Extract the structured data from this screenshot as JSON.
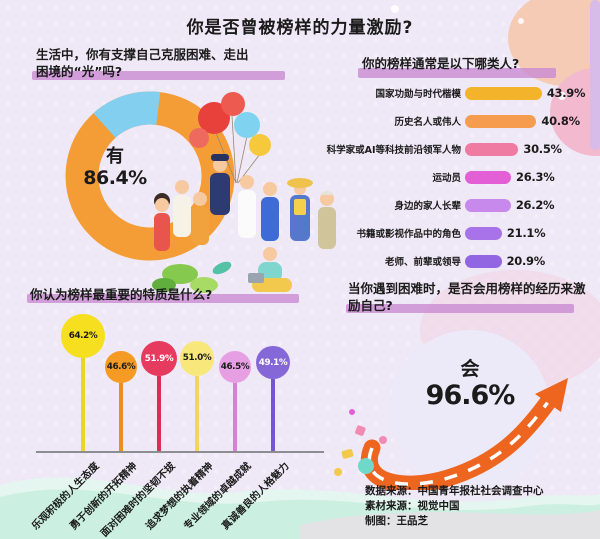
{
  "title": "你是否曾被榜样的力量激励?",
  "questions": {
    "q1": {
      "line1": "生活中，你有支撑自己克服困难、走出",
      "line2": "困境的“光”吗?"
    },
    "q2": {
      "text": "你的榜样通常是以下哪类人?"
    },
    "q3": {
      "text": "你认为榜样最重要的特质是什么?"
    },
    "q4": {
      "line1": "当你遇到困难时，是否会用榜样的经历来激",
      "line2": "励自己?"
    }
  },
  "chart_data": [
    {
      "type": "pie",
      "subtype": "donut",
      "question": "生活中，你有支撑自己克服困难、走出困境的“光”吗?",
      "segments": [
        {
          "label": "有",
          "value": 86.4,
          "color": "#F49C35"
        },
        {
          "label": "",
          "value": 13.6,
          "color": "#82CFF0"
        }
      ],
      "center_label": "有",
      "center_value": "86.4%"
    },
    {
      "type": "bar",
      "orientation": "horizontal",
      "question": "你的榜样通常是以下哪类人?",
      "categories": [
        "国家功勋与时代楷模",
        "历史名人或伟人",
        "科学家或AI等科技前沿领军人物",
        "运动员",
        "身边的家人长辈",
        "书籍或影视作品中的角色",
        "老师、前辈或领导"
      ],
      "values": [
        43.9,
        40.8,
        30.5,
        26.3,
        26.2,
        21.1,
        20.9
      ],
      "display_values": [
        "43.9%",
        "40.8%",
        "30.5%",
        "26.3%",
        "26.2%",
        "21.1%",
        "20.9%"
      ],
      "colors": [
        "#F3B32A",
        "#F59C4E",
        "#F07BA2",
        "#E25FD6",
        "#C789EB",
        "#A873E8",
        "#9265E3"
      ],
      "xlim": [
        0,
        50
      ]
    },
    {
      "type": "lollipop",
      "question": "你认为榜样最重要的特质是什么?",
      "categories": [
        "乐观积极的人生态度",
        "勇于创新的开拓精神",
        "面对困难时的坚韧不拔",
        "追求梦想的执着精神",
        "专业领域的卓越成就",
        "真诚善良的人格魅力"
      ],
      "values": [
        64.2,
        46.6,
        51.9,
        51.0,
        46.5,
        49.1
      ],
      "display_values": [
        "64.2%",
        "46.6%",
        "51.9%",
        "51.0%",
        "46.5%",
        "49.1%"
      ],
      "colors": [
        "#F6DF1E",
        "#F59A23",
        "#E73A5F",
        "#F8E77B",
        "#E79FE3",
        "#8667D8"
      ]
    },
    {
      "type": "stat",
      "question": "当你遇到困难时，是否会用榜样的经历来激励自己?",
      "label": "会",
      "value": 96.6,
      "display_value": "96.6%"
    }
  ],
  "footer": {
    "line1": "数据来源：中国青年报社社会调查中心",
    "line2": "素材来源：视觉中国",
    "line3": "制图：王品芝"
  }
}
